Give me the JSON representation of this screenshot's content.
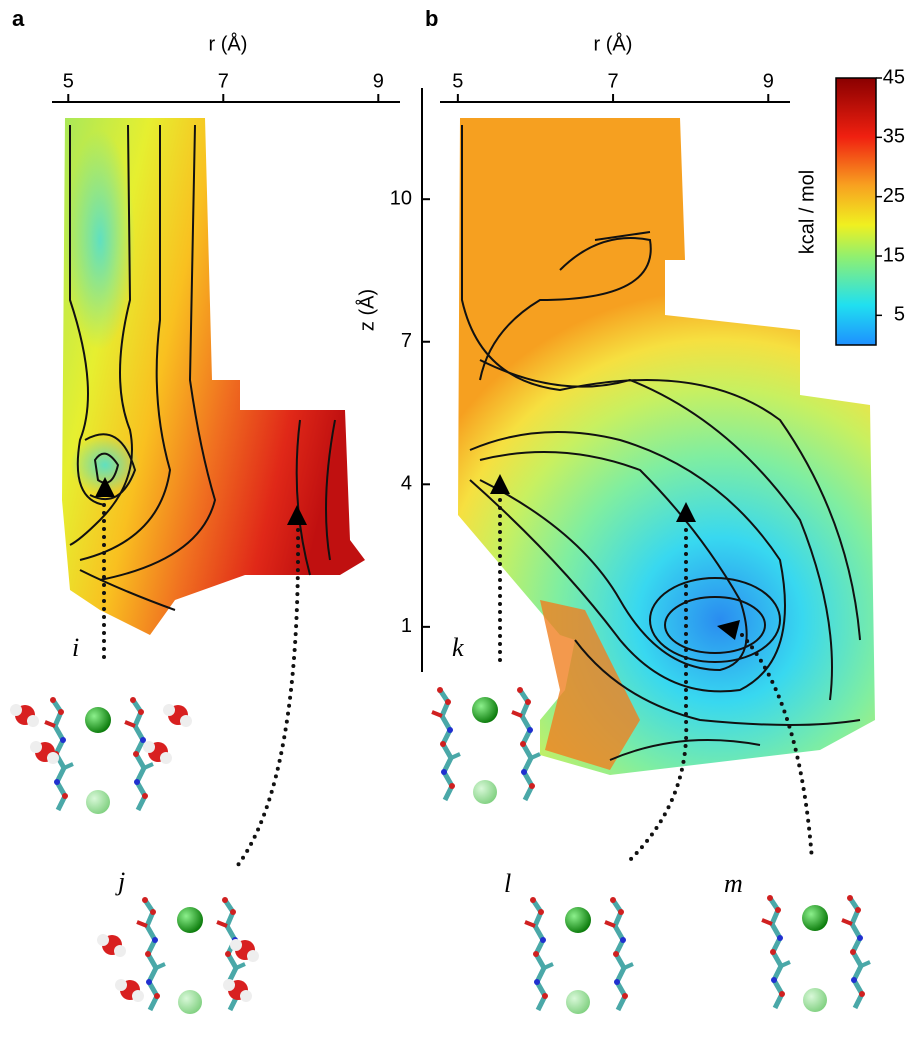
{
  "panels": [
    {
      "label": "a",
      "xlabel": "r (Å)",
      "xlim": [
        4.79,
        9.28
      ],
      "xticks": [
        5,
        7,
        9
      ],
      "structures": [
        "i",
        "j"
      ]
    },
    {
      "label": "b",
      "xlabel": "r (Å)",
      "ylabel": "z (Å)",
      "xlim": [
        4.77,
        9.28
      ],
      "xticks": [
        5,
        7,
        9
      ],
      "ylim": [
        0.05,
        12.34
      ],
      "yticks": [
        1,
        4,
        7,
        10
      ],
      "structures": [
        "k",
        "l",
        "m"
      ]
    }
  ],
  "colorbar": {
    "label": "kcal / mol",
    "lim": [
      0,
      45
    ],
    "ticks": [
      5,
      15,
      25,
      35,
      45
    ]
  }
}
